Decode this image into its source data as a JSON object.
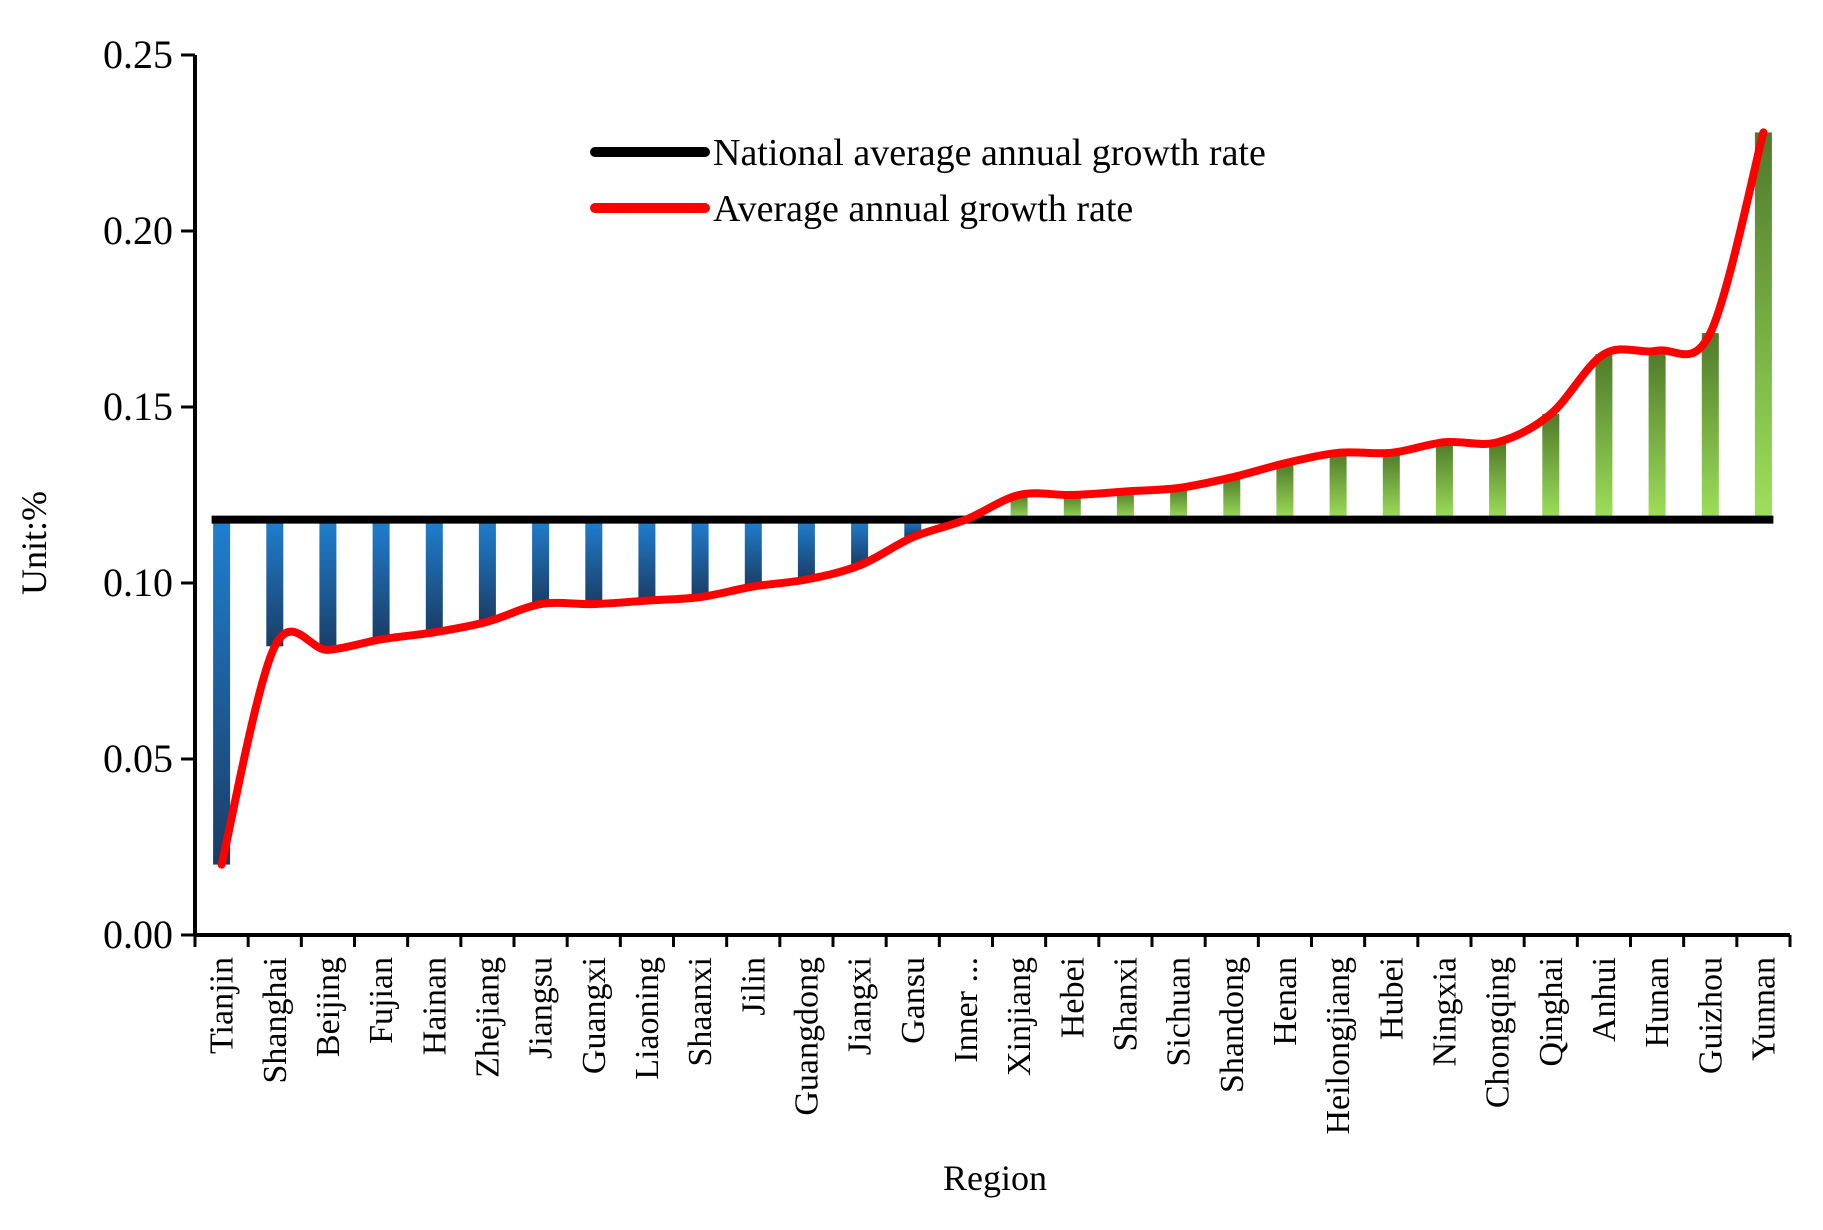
{
  "chart_data": {
    "type": "bar+line",
    "title": "",
    "xlabel": "Region",
    "ylabel": "Unit:%",
    "ylim": [
      0,
      0.25
    ],
    "yticks": [
      "0.00",
      "0.05",
      "0.10",
      "0.15",
      "0.20",
      "0.25"
    ],
    "grid": false,
    "legend_position": "top-center",
    "national_average": 0.118,
    "categories": [
      "Tianjin",
      "Shanghai",
      "Beijing",
      "Fujian",
      "Hainan",
      "Zhejiang",
      "Jiangsu",
      "Guangxi",
      "Liaoning",
      "Shaanxi",
      "Jilin",
      "Guangdong",
      "Jiangxi",
      "Gansu",
      "Inner ...",
      "Xinjiang",
      "Hebei",
      "Shanxi",
      "Sichuan",
      "Shandong",
      "Henan",
      "Heilongjiang",
      "Hubei",
      "Ningxia",
      "Chongqing",
      "Qinghai",
      "Anhui",
      "Hunan",
      "Guizhou",
      "Yunnan"
    ],
    "values": [
      0.02,
      0.082,
      0.081,
      0.084,
      0.086,
      0.089,
      0.094,
      0.094,
      0.095,
      0.096,
      0.099,
      0.101,
      0.105,
      0.113,
      0.118,
      0.125,
      0.125,
      0.126,
      0.127,
      0.13,
      0.134,
      0.137,
      0.137,
      0.14,
      0.14,
      0.148,
      0.165,
      0.166,
      0.171,
      0.228
    ],
    "series": [
      {
        "name": "National average annual growth rate",
        "color": "#000000"
      },
      {
        "name": "Average annual growth rate",
        "color": "#ff0000"
      }
    ],
    "below_color": "#1f7fd0",
    "below_dark_color": "#1a3d66",
    "above_color": "#9ee05a",
    "above_dark_color": "#4f7a2a"
  }
}
